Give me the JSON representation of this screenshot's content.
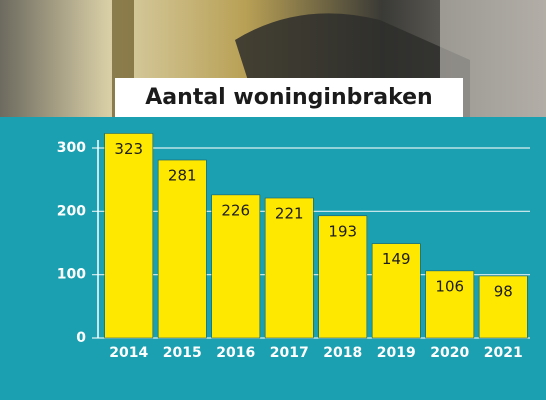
{
  "chart_data": {
    "type": "bar",
    "title": "Aantal woninginbraken",
    "categories": [
      "2014",
      "2015",
      "2016",
      "2017",
      "2018",
      "2019",
      "2020",
      "2021"
    ],
    "values": [
      323,
      281,
      226,
      221,
      193,
      149,
      106,
      98
    ],
    "color": "#ffe800",
    "ylim": [
      0,
      330
    ],
    "yticks": [
      0,
      100,
      200,
      300
    ],
    "grid": true
  }
}
